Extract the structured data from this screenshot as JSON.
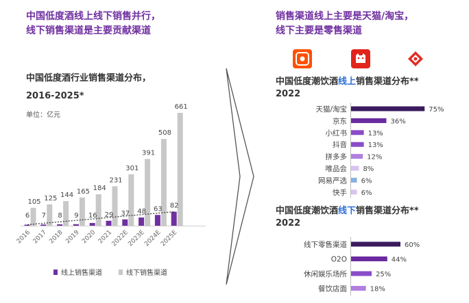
{
  "left": {
    "headline": [
      "中国低度酒线上线下销售并行，",
      "线下销售渠道是主要贡献渠道"
    ],
    "chart_title": [
      "中国低度酒行业销售渠道分布，",
      "2016-2025*"
    ],
    "unit": "单位：亿元"
  },
  "right": {
    "headline": [
      "销售渠道线上主要是天猫/淘宝，",
      "线下主要是零售渠道"
    ],
    "logos": [
      {
        "name": "taobao-logo-icon",
        "color": "#ff5000",
        "glyph": "淘"
      },
      {
        "name": "tmall-logo-icon",
        "color": "#e1251b",
        "glyph": "猫"
      },
      {
        "name": "pinduoduo-logo-icon",
        "color": "#e02e24",
        "glyph": "拼"
      }
    ],
    "online_title": {
      "pre": "中国低度潮饮酒",
      "hl": "线上",
      "post": "销售渠道分布**",
      "year": "2022"
    },
    "offline_title": {
      "pre": "中国低度潮饮酒",
      "hl": "线下",
      "post": "销售渠道分布**",
      "year": "2022"
    }
  },
  "chart_data": [
    {
      "type": "bar",
      "categories": [
        "2016",
        "2017",
        "2018",
        "2019",
        "2020",
        "2021",
        "2022E",
        "2023E",
        "2024E",
        "2025E"
      ],
      "series": [
        {
          "name": "线上销售渠道",
          "values": [
            6,
            7,
            8,
            9,
            16,
            29,
            37,
            48,
            63,
            82
          ],
          "color": "#7030a0"
        },
        {
          "name": "线下销售渠道",
          "values": [
            105,
            125,
            144,
            165,
            184,
            231,
            301,
            391,
            508,
            661
          ],
          "color": "#c8c8c8"
        }
      ],
      "title": "中国低度酒行业销售渠道分布，2016-2025*",
      "ylim": [
        0,
        661
      ],
      "trendline": "dotted"
    },
    {
      "type": "bar",
      "orientation": "horizontal",
      "title": "中国低度潮饮酒线上销售渠道分布**2022",
      "categories": [
        "天猫/淘宝",
        "京东",
        "小红书",
        "抖音",
        "拼多多",
        "唯品会",
        "网易严选",
        "快手"
      ],
      "values": [
        75,
        36,
        13,
        13,
        12,
        8,
        6,
        6
      ],
      "labels": [
        "75%",
        "36%",
        "13%",
        "13%",
        "12%",
        "8%",
        "6%",
        "6%"
      ],
      "colors": [
        "#3b1a5e",
        "#6a2aa0",
        "#8a4cc8",
        "#8a4cc8",
        "#b07fe0",
        "#d9c3f0",
        "#8ab0e0",
        "#d9c3f0"
      ],
      "xlim": [
        0,
        100
      ]
    },
    {
      "type": "bar",
      "orientation": "horizontal",
      "title": "中国低度潮饮酒线下销售渠道分布**2022",
      "categories": [
        "线下零售渠道",
        "O2O",
        "休闲娱乐场所",
        "餐饮店面"
      ],
      "values": [
        60,
        44,
        25,
        18
      ],
      "labels": [
        "60%",
        "44%",
        "25%",
        "18%"
      ],
      "colors": [
        "#3b1a5e",
        "#6a2aa0",
        "#8a4cc8",
        "#b07fe0"
      ],
      "xlim": [
        0,
        100
      ]
    }
  ]
}
